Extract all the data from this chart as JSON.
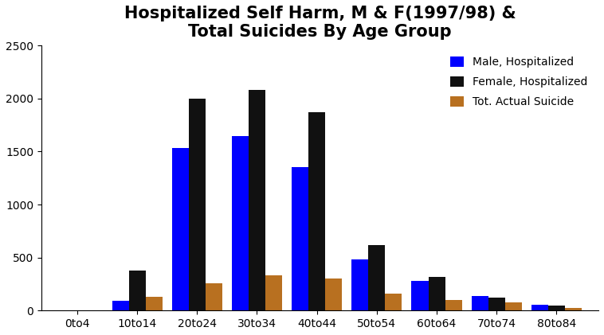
{
  "title": "Hospitalized Self Harm, M & F(1997/98) &\nTotal Suicides By Age Group",
  "categories": [
    "0to4",
    "10to14",
    "20to24",
    "30to34",
    "40to44",
    "50to54",
    "60to64",
    "70to74",
    "80to84"
  ],
  "male_hospitalized": [
    0,
    90,
    1530,
    1650,
    1350,
    480,
    280,
    135,
    55
  ],
  "female_hospitalized": [
    0,
    380,
    2000,
    2080,
    1870,
    620,
    315,
    120,
    50
  ],
  "tot_actual_suicide": [
    0,
    130,
    260,
    330,
    300,
    160,
    100,
    75,
    25
  ],
  "colors": {
    "male": "#0000ff",
    "female": "#111111",
    "suicide": "#b87020"
  },
  "legend_labels": [
    "Male, Hospitalized",
    "Female, Hospitalized",
    "Tot. Actual Suicide"
  ],
  "ylim": [
    0,
    2500
  ],
  "yticks": [
    0,
    500,
    1000,
    1500,
    2000,
    2500
  ],
  "title_fontsize": 15,
  "tick_fontsize": 10,
  "background_color": "#ffffff",
  "bar_width": 0.28,
  "figsize": [
    7.58,
    4.21
  ],
  "dpi": 100
}
